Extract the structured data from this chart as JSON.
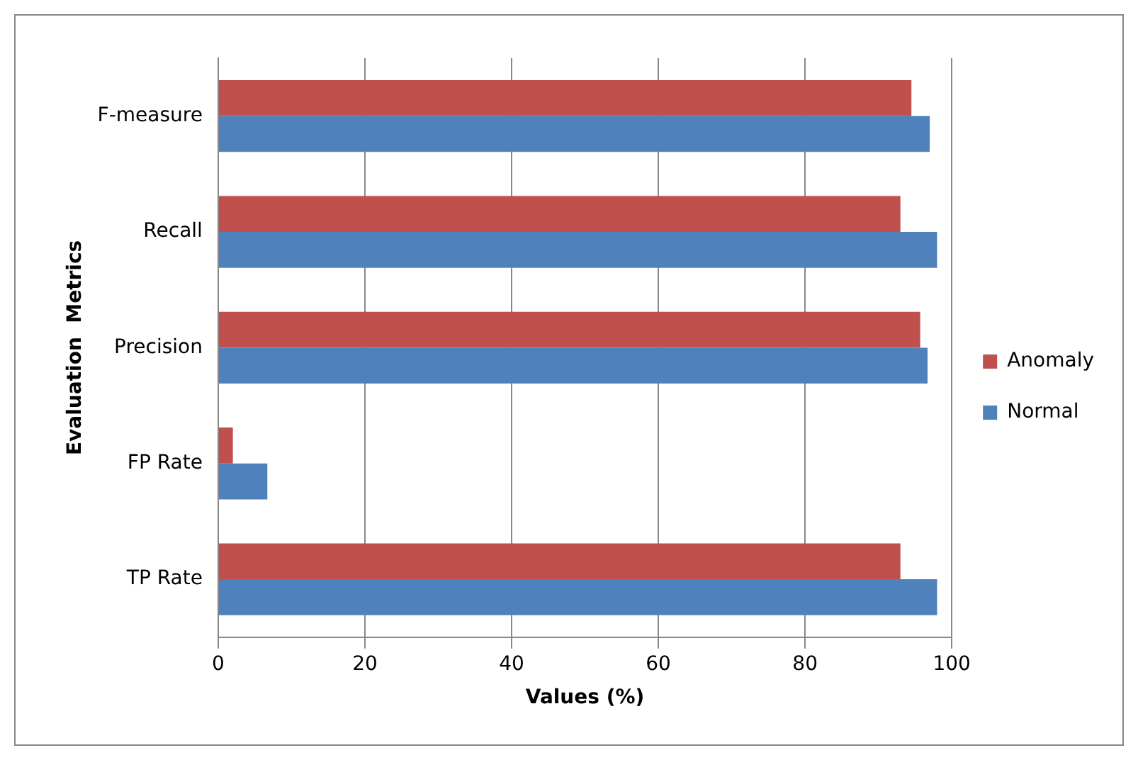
{
  "chart_data": {
    "type": "bar",
    "orientation": "horizontal",
    "xlabel": "Values (%)",
    "ylabel": "Evaluation  Metrics",
    "categories": [
      "F-measure",
      "Recall",
      "Precision",
      "FP Rate",
      "TP Rate"
    ],
    "series": [
      {
        "name": "Anomaly",
        "color": "#c0504d",
        "values": [
          94.5,
          93,
          95.7,
          2,
          93
        ]
      },
      {
        "name": "Normal",
        "color": "#4f81bd",
        "values": [
          97,
          98,
          96.7,
          6.7,
          98
        ]
      }
    ],
    "xlim": [
      0,
      100
    ],
    "xticks": [
      0,
      20,
      40,
      60,
      80,
      100
    ],
    "grid": "x",
    "legend": "right"
  }
}
